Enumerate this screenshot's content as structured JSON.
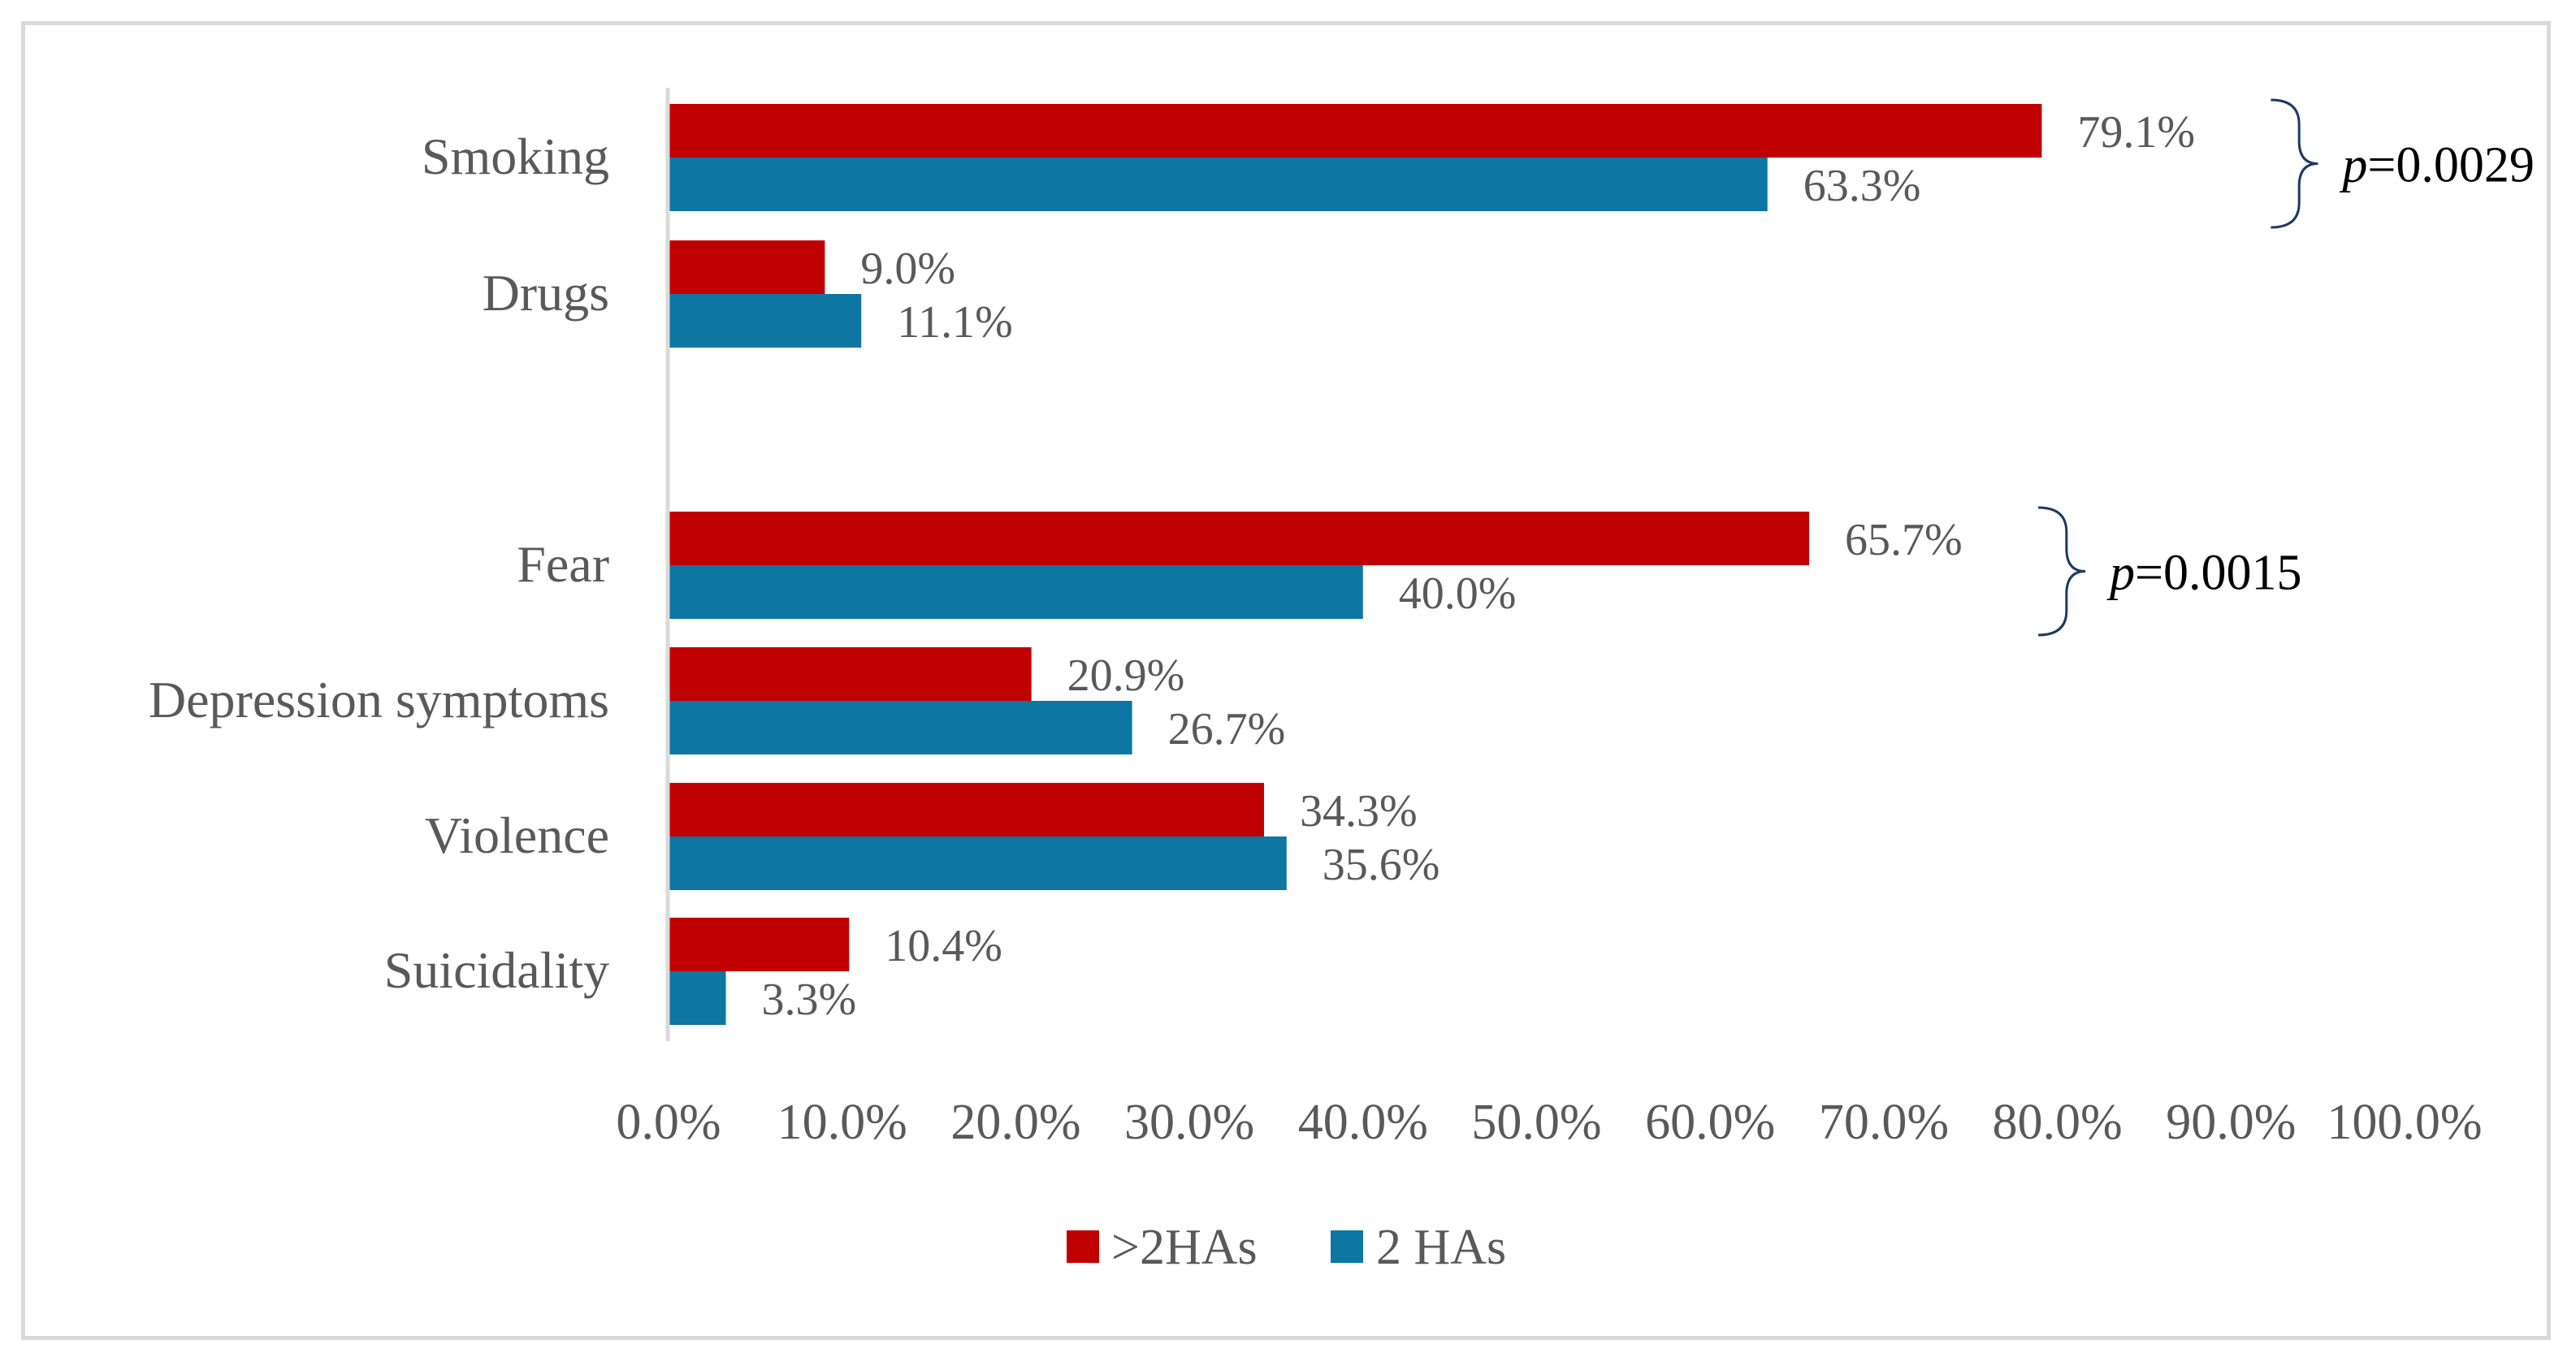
{
  "chart_data": {
    "type": "bar",
    "orientation": "horizontal",
    "categories": [
      "Smoking",
      "Drugs",
      "Fear",
      "Depression symptoms",
      "Violence",
      "Suicidality"
    ],
    "series": [
      {
        "name": ">2HAs",
        "color": "#c00000",
        "values": [
          79.1,
          9.0,
          65.7,
          20.9,
          34.3,
          10.4
        ],
        "labels": [
          "79.1%",
          "9.0%",
          "65.7%",
          "20.9%",
          "34.3%",
          "10.4%"
        ]
      },
      {
        "name": "2 HAs",
        "color": "#0e76a3",
        "values": [
          63.3,
          11.1,
          40.0,
          26.7,
          35.6,
          3.3
        ],
        "labels": [
          "63.3%",
          "11.1%",
          "40.0%",
          "26.7%",
          "35.6%",
          "3.3%"
        ]
      }
    ],
    "xlim": [
      0,
      100
    ],
    "ticks": [
      0,
      10,
      20,
      30,
      40,
      50,
      60,
      70,
      80,
      90,
      100
    ],
    "tick_labels": [
      "0.0%",
      "10.0%",
      "20.0%",
      "30.0%",
      "40.0%",
      "50.0%",
      "60.0%",
      "70.0%",
      "80.0%",
      "90.0%",
      "100.0%"
    ],
    "legend_position": "bottom",
    "annotations": [
      {
        "category": "Smoking",
        "prefix": "p",
        "text": "=0.0029"
      },
      {
        "category": "Fear",
        "prefix": "p",
        "text": "=0.0015"
      }
    ],
    "grid": false
  }
}
